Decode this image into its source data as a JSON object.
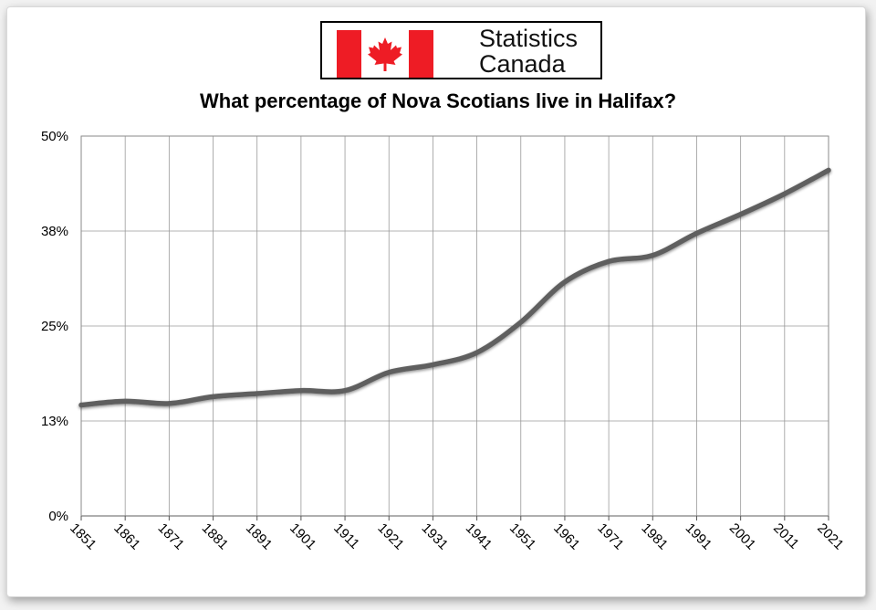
{
  "logo": {
    "line1": "Statistics",
    "line2": "Canada",
    "flag_colors": {
      "red": "#ee1c25",
      "white": "#ffffff"
    }
  },
  "chart_data": {
    "type": "line",
    "title": "What percentage of Nova Scotians live in Halifax?",
    "xlabel": "",
    "ylabel": "",
    "x": [
      "1851",
      "1861",
      "1871",
      "1881",
      "1891",
      "1901",
      "1911",
      "1921",
      "1931",
      "1941",
      "1951",
      "1961",
      "1971",
      "1981",
      "1991",
      "2001",
      "2011",
      "2021"
    ],
    "series": [
      {
        "values": [
          14.6,
          15.1,
          14.8,
          15.7,
          16.1,
          16.5,
          16.5,
          18.9,
          19.9,
          21.5,
          25.5,
          30.8,
          33.5,
          34.3,
          37.2,
          39.7,
          42.4,
          45.5
        ]
      }
    ],
    "y_ticks": [
      "0%",
      "13%",
      "25%",
      "38%",
      "50%"
    ],
    "ylim": [
      0,
      50
    ],
    "grid": true,
    "line_color": "#5f5f5f"
  }
}
